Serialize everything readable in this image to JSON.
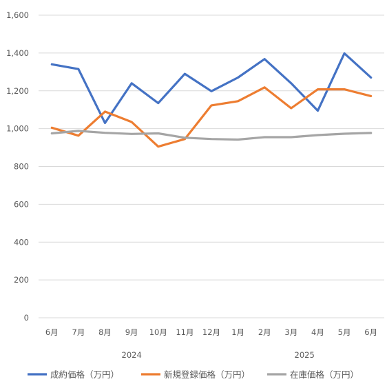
{
  "chart_data": {
    "type": "line",
    "title": "",
    "xlabel": "",
    "ylabel": "",
    "categories": [
      "6月",
      "7月",
      "8月",
      "9月",
      "10月",
      "11月",
      "12月",
      "1月",
      "2月",
      "3月",
      "4月",
      "5月",
      "6月"
    ],
    "year_groups": [
      {
        "label": "2024",
        "start_index": 0,
        "end_index": 6
      },
      {
        "label": "2025",
        "start_index": 7,
        "end_index": 12
      }
    ],
    "ylim": [
      0,
      1600
    ],
    "y_ticks": [
      0,
      200,
      400,
      600,
      800,
      1000,
      1200,
      1400,
      1600
    ],
    "y_tick_labels": [
      "0",
      "200",
      "400",
      "600",
      "800",
      "1,000",
      "1,200",
      "1,400",
      "1,600"
    ],
    "grid": "horizontal",
    "legend_position": "bottom",
    "series": [
      {
        "name": "成約価格（万円）",
        "color": "#4472c4",
        "values": [
          1340,
          1315,
          1030,
          1240,
          1135,
          1290,
          1198,
          1270,
          1368,
          1240,
          1095,
          1398,
          1270
        ]
      },
      {
        "name": "新規登録価格（万円）",
        "color": "#ed7d31",
        "values": [
          1005,
          963,
          1090,
          1035,
          905,
          945,
          1123,
          1145,
          1218,
          1108,
          1208,
          1208,
          1172
        ]
      },
      {
        "name": "在庫価格（万円）",
        "color": "#a5a5a5",
        "values": [
          975,
          988,
          978,
          972,
          975,
          952,
          945,
          942,
          955,
          955,
          966,
          973,
          977
        ]
      }
    ]
  }
}
